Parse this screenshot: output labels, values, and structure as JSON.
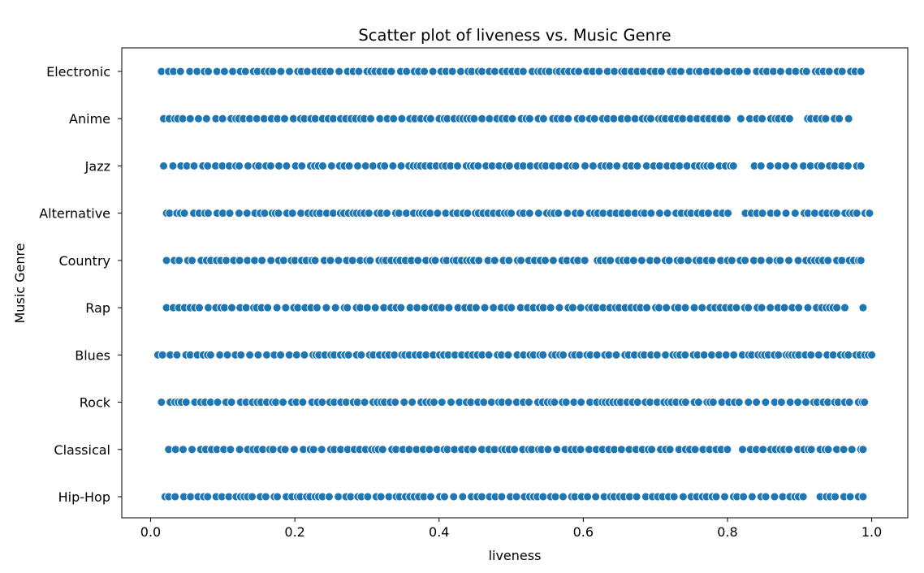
{
  "chart_data": {
    "type": "scatter",
    "title": "Scatter plot of liveness vs. Music Genre",
    "xlabel": "liveness",
    "ylabel": "Music Genre",
    "xlim": [
      -0.04,
      1.05
    ],
    "xticks": [
      "0.0",
      "0.2",
      "0.4",
      "0.6",
      "0.8",
      "1.0"
    ],
    "categories": [
      "Electronic",
      "Anime",
      "Jazz",
      "Alternative",
      "Country",
      "Rap",
      "Blues",
      "Rock",
      "Classical",
      "Hip-Hop"
    ],
    "grid": false,
    "marker_color": "#1f77b4",
    "marker_edge": "#ffffff",
    "series": [
      {
        "category": "Electronic",
        "min": 0.015,
        "max": 0.985,
        "gaps": []
      },
      {
        "category": "Anime",
        "min": 0.018,
        "max": 0.968,
        "gaps": [
          [
            0.8,
            0.815
          ],
          [
            0.895,
            0.91
          ]
        ]
      },
      {
        "category": "Jazz",
        "min": 0.018,
        "max": 0.985,
        "gaps": [
          [
            0.812,
            0.835
          ]
        ]
      },
      {
        "category": "Alternative",
        "min": 0.022,
        "max": 0.997,
        "gaps": [
          [
            0.805,
            0.815
          ]
        ]
      },
      {
        "category": "Country",
        "min": 0.022,
        "max": 0.985,
        "gaps": [
          [
            0.605,
            0.612
          ]
        ]
      },
      {
        "category": "Rap",
        "min": 0.022,
        "max": 0.988,
        "gaps": [
          [
            0.965,
            0.985
          ]
        ]
      },
      {
        "category": "Blues",
        "min": 0.01,
        "max": 1.0,
        "gaps": []
      },
      {
        "category": "Rock",
        "min": 0.015,
        "max": 0.99,
        "gaps": []
      },
      {
        "category": "Classical",
        "min": 0.025,
        "max": 0.988,
        "gaps": [
          [
            0.81,
            0.82
          ]
        ]
      },
      {
        "category": "Hip-Hop",
        "min": 0.02,
        "max": 0.988,
        "gaps": [
          [
            0.905,
            0.925
          ]
        ]
      }
    ]
  }
}
